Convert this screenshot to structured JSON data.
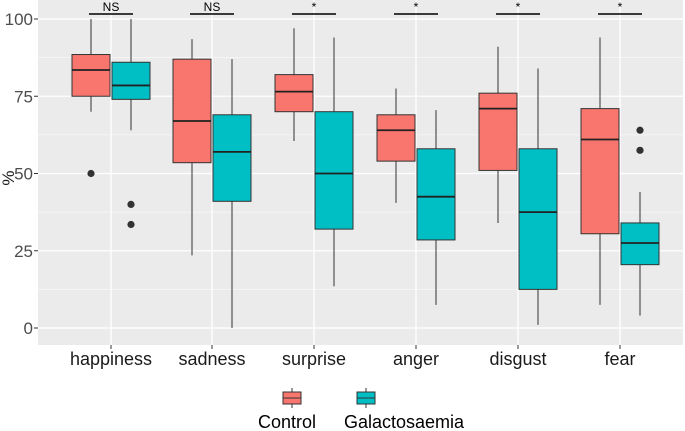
{
  "chart_data": {
    "type": "boxplot",
    "title": "",
    "xlabel": "",
    "ylabel": "%",
    "ylim": [
      -5,
      102
    ],
    "yticks": [
      0,
      25,
      50,
      75,
      100
    ],
    "grid": true,
    "legend_position": "bottom",
    "colors": {
      "Control": "#f8766d",
      "Galactosaemia": "#00bfc4",
      "panel": "#ebebeb",
      "grid": "#ffffff"
    },
    "categories": [
      "happiness",
      "sadness",
      "surprise",
      "anger",
      "disgust",
      "fear"
    ],
    "significance": [
      "NS",
      "NS",
      "*",
      "*",
      "*",
      "*"
    ],
    "series": [
      {
        "name": "Control",
        "boxes": [
          {
            "min": 70,
            "q1": 75,
            "median": 83.5,
            "q3": 88.5,
            "max": 100,
            "outliers": [
              50
            ]
          },
          {
            "min": 23.5,
            "q1": 53.5,
            "median": 67,
            "q3": 87,
            "max": 93.5,
            "outliers": []
          },
          {
            "min": 60.5,
            "q1": 70,
            "median": 76.5,
            "q3": 82,
            "max": 97,
            "outliers": []
          },
          {
            "min": 40.5,
            "q1": 54,
            "median": 64,
            "q3": 69,
            "max": 77.5,
            "outliers": []
          },
          {
            "min": 34,
            "q1": 51,
            "median": 71,
            "q3": 76,
            "max": 91,
            "outliers": []
          },
          {
            "min": 7.5,
            "q1": 30.5,
            "median": 61,
            "q3": 71,
            "max": 94,
            "outliers": []
          }
        ]
      },
      {
        "name": "Galactosaemia",
        "boxes": [
          {
            "min": 64,
            "q1": 74,
            "median": 78.5,
            "q3": 86,
            "max": 100,
            "outliers": [
              40,
              33.5
            ]
          },
          {
            "min": 0,
            "q1": 41,
            "median": 57,
            "q3": 69,
            "max": 87,
            "outliers": []
          },
          {
            "min": 13.5,
            "q1": 32,
            "median": 50,
            "q3": 70,
            "max": 94,
            "outliers": []
          },
          {
            "min": 7.5,
            "q1": 28.5,
            "median": 42.5,
            "q3": 58,
            "max": 70.5,
            "outliers": []
          },
          {
            "min": 1,
            "q1": 12.5,
            "median": 37.5,
            "q3": 58,
            "max": 84,
            "outliers": []
          },
          {
            "min": 4,
            "q1": 20.5,
            "median": 27.5,
            "q3": 34,
            "max": 44,
            "outliers": [
              64,
              57.5
            ]
          }
        ]
      }
    ]
  }
}
